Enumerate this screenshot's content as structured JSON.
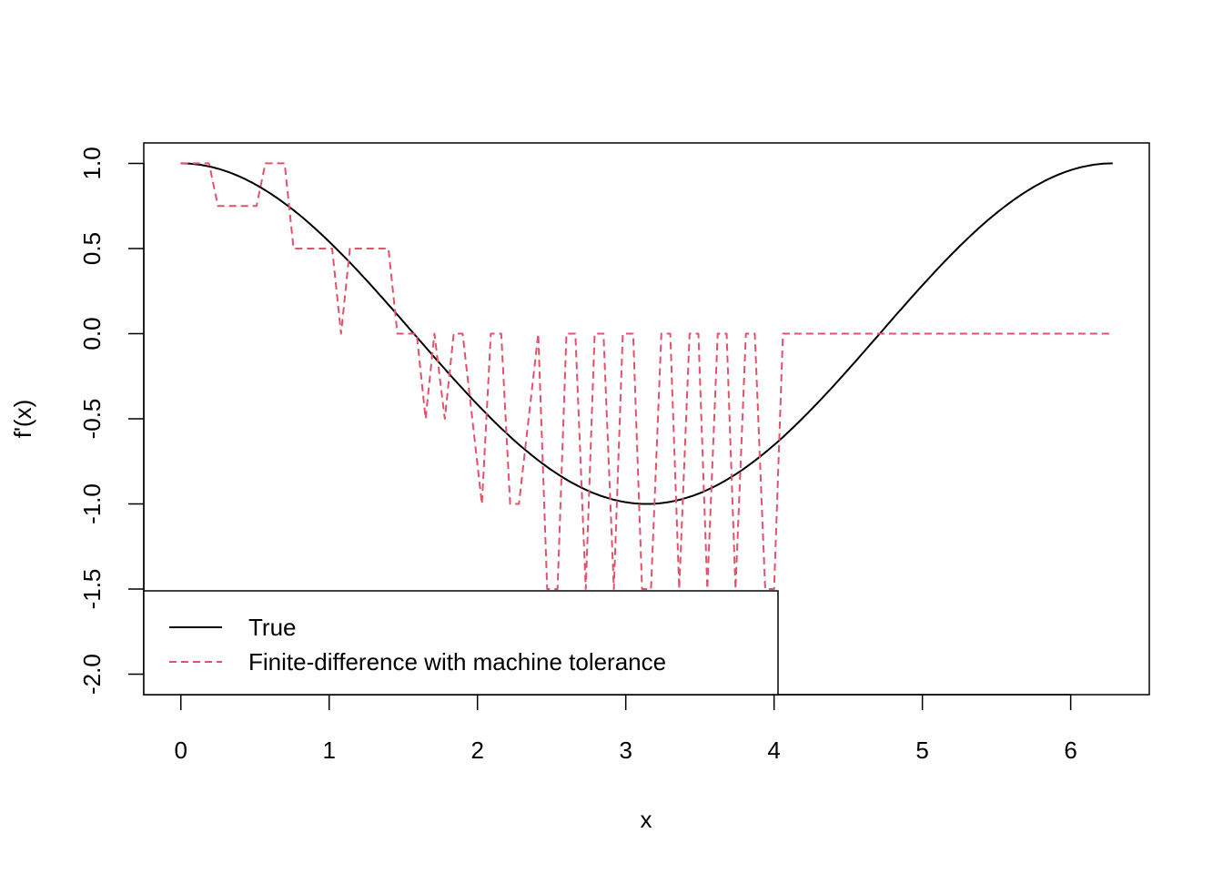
{
  "chart_data": {
    "type": "line",
    "xlabel": "x",
    "ylabel": "f'(x)",
    "xlim": [
      -0.25,
      6.53
    ],
    "ylim": [
      -2.12,
      1.12
    ],
    "x_ticks": [
      0,
      1,
      2,
      3,
      4,
      5,
      6
    ],
    "x_tick_labels": [
      "0",
      "1",
      "2",
      "3",
      "4",
      "5",
      "6"
    ],
    "y_ticks": [
      -2.0,
      -1.5,
      -1.0,
      -0.5,
      0.0,
      0.5,
      1.0
    ],
    "y_tick_labels": [
      "-2.0",
      "-1.5",
      "-1.0",
      "-0.5",
      "0.0",
      "0.5",
      "1.0"
    ],
    "grid": false,
    "legend_position": "bottom-left",
    "series": [
      {
        "name": "True",
        "color": "#000000",
        "dash": "solid",
        "function": "cos",
        "x_range": [
          0,
          6.2832
        ]
      },
      {
        "name": "Finite-difference with machine tolerance",
        "color": "#DF536B",
        "dash": "dashed",
        "x": [
          0,
          0.19,
          0.25,
          0.51,
          0.57,
          0.7,
          0.76,
          1.02,
          1.08,
          1.14,
          1.4,
          1.46,
          1.59,
          1.65,
          1.71,
          1.78,
          1.84,
          1.9,
          2.03,
          2.09,
          2.16,
          2.22,
          2.28,
          2.41,
          2.47,
          2.54,
          2.6,
          2.66,
          2.73,
          2.79,
          2.85,
          2.92,
          2.98,
          3.05,
          3.11,
          3.17,
          3.24,
          3.3,
          3.36,
          3.43,
          3.49,
          3.55,
          3.62,
          3.68,
          3.74,
          3.81,
          3.87,
          3.94,
          4.0,
          4.06,
          6.28
        ],
        "y": [
          1.0,
          1.0,
          0.75,
          0.75,
          1.0,
          1.0,
          0.5,
          0.5,
          0.0,
          0.5,
          0.5,
          0.0,
          0.0,
          -0.5,
          0.0,
          -0.5,
          0.0,
          0.0,
          -1.0,
          0.0,
          0.0,
          -1.0,
          -1.0,
          0.0,
          -1.5,
          -1.5,
          0.0,
          0.0,
          -1.5,
          0.0,
          0.0,
          -1.5,
          0.0,
          0.0,
          -1.5,
          -1.5,
          0.0,
          0.0,
          -1.5,
          0.0,
          0.0,
          -1.5,
          0.0,
          0.0,
          -1.5,
          0.0,
          0.0,
          -1.5,
          -1.5,
          0.0,
          0.0
        ]
      }
    ]
  }
}
